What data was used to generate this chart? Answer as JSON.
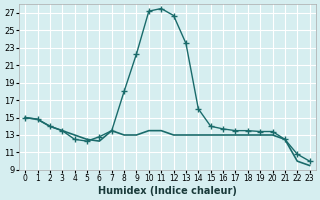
{
  "title": "",
  "xlabel": "Humidex (Indice chaleur)",
  "ylabel": "",
  "bg_color": "#d6eef0",
  "grid_color": "#ffffff",
  "line_color": "#1a6b6b",
  "line_color2": "#1a6b6b",
  "xlim": [
    -0.5,
    23.5
  ],
  "ylim": [
    9,
    28
  ],
  "yticks": [
    9,
    11,
    13,
    15,
    17,
    19,
    21,
    23,
    25,
    27
  ],
  "xticks": [
    0,
    1,
    2,
    3,
    4,
    5,
    6,
    7,
    8,
    9,
    10,
    11,
    12,
    13,
    14,
    15,
    16,
    17,
    18,
    19,
    20,
    21,
    22,
    23
  ],
  "curve1_x": [
    0,
    1,
    2,
    3,
    4,
    5,
    6,
    7,
    8,
    9,
    10,
    11,
    12,
    13,
    14,
    15,
    16,
    17,
    18,
    19,
    20,
    21,
    22,
    23
  ],
  "curve1_y": [
    15,
    14.8,
    14.0,
    13.5,
    12.5,
    12.3,
    12.8,
    13.5,
    18.0,
    22.3,
    27.2,
    27.5,
    26.7,
    23.5,
    16.0,
    14.0,
    13.7,
    13.5,
    13.5,
    13.4,
    13.4,
    12.5,
    10.8,
    10.0
  ],
  "curve2_x": [
    0,
    1,
    2,
    3,
    4,
    5,
    6,
    7,
    8,
    9,
    10,
    11,
    12,
    13,
    14,
    15,
    16,
    17,
    18,
    19,
    20,
    21,
    22,
    23
  ],
  "curve2_y": [
    15,
    14.8,
    14.0,
    13.5,
    13.0,
    12.5,
    12.3,
    13.5,
    13.0,
    13.0,
    13.5,
    13.5,
    13.0,
    13.0,
    13.0,
    13.0,
    13.0,
    13.0,
    13.0,
    13.0,
    13.0,
    12.5,
    10.0,
    9.5
  ]
}
